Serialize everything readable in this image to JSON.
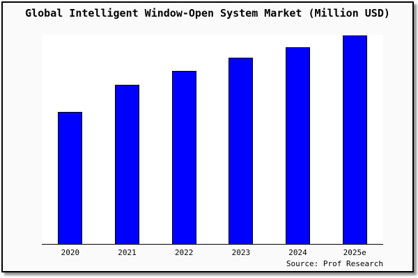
{
  "figure": {
    "background": "#fafafa",
    "border_color": "#000000",
    "plot_background": "#ffffff"
  },
  "chart_data": {
    "type": "bar",
    "title": "Global Intelligent Window-Open System Market (Million USD)",
    "categories": [
      "2020",
      "2021",
      "2022",
      "2023",
      "2024",
      "2025e"
    ],
    "values": [
      63.1,
      76.1,
      82.7,
      89.0,
      94.0,
      99.7
    ],
    "units": "relative height, % of plot area (no y-axis ticks shown in chart)",
    "xlabel": "",
    "ylabel": "",
    "ylim": [
      0,
      100
    ],
    "grid": false,
    "legend": false,
    "bar_fill": "#0000ff",
    "bar_border": "#000000"
  },
  "source": {
    "label": "Source: Prof Research"
  }
}
